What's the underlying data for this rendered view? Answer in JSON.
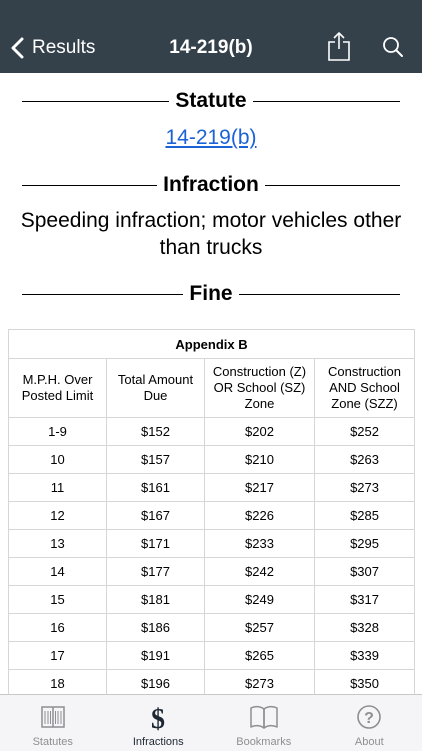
{
  "nav": {
    "back_label": "Results",
    "title": "14-219(b)"
  },
  "sections": {
    "statute_heading": "Statute",
    "statute_link": "14-219(b)",
    "infraction_heading": "Infraction",
    "infraction_text": "Speeding infraction; motor vehicles other than trucks",
    "fine_heading": "Fine"
  },
  "table": {
    "caption": "Appendix B",
    "headers": [
      "M.P.H. Over Posted Limit",
      "Total Amount Due",
      "Construction (Z) OR School (SZ) Zone",
      "Construction AND School Zone (SZZ)"
    ],
    "rows": [
      [
        "1-9",
        "$152",
        "$202",
        "$252"
      ],
      [
        "10",
        "$157",
        "$210",
        "$263"
      ],
      [
        "11",
        "$161",
        "$217",
        "$273"
      ],
      [
        "12",
        "$167",
        "$226",
        "$285"
      ],
      [
        "13",
        "$171",
        "$233",
        "$295"
      ],
      [
        "14",
        "$177",
        "$242",
        "$307"
      ],
      [
        "15",
        "$181",
        "$249",
        "$317"
      ],
      [
        "16",
        "$186",
        "$257",
        "$328"
      ],
      [
        "17",
        "$191",
        "$265",
        "$339"
      ],
      [
        "18",
        "$196",
        "$273",
        "$350"
      ]
    ]
  },
  "tabs": [
    {
      "label": "Statutes",
      "icon": "book-columns-icon",
      "active": false
    },
    {
      "label": "Infractions",
      "icon": "dollar-icon",
      "active": true
    },
    {
      "label": "Bookmarks",
      "icon": "open-book-icon",
      "active": false
    },
    {
      "label": "About",
      "icon": "question-circle-icon",
      "active": false
    }
  ],
  "colors": {
    "navbar": "#34404a",
    "link": "#1a62d6",
    "tab_active": "#1c2733",
    "tab_inactive": "#8e8e93"
  }
}
